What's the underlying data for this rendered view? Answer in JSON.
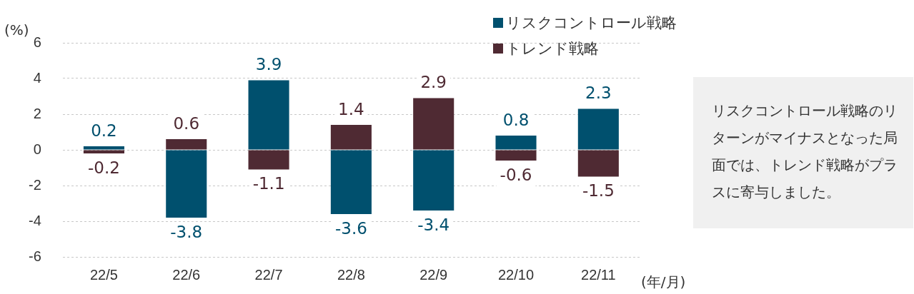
{
  "chart_data": {
    "type": "bar",
    "stacked": true,
    "ylabel": "(%)",
    "xlabel": "(年/月)",
    "categories": [
      "22/5",
      "22/6",
      "22/7",
      "22/8",
      "22/9",
      "22/10",
      "22/11"
    ],
    "series": [
      {
        "name": "リスクコントロール戦略",
        "color": "#00506e",
        "values": [
          0.2,
          -3.8,
          3.9,
          -3.6,
          -3.4,
          0.8,
          2.3
        ]
      },
      {
        "name": "トレンド戦略",
        "color": "#4f2a33",
        "values": [
          -0.2,
          0.6,
          -1.1,
          1.4,
          2.9,
          -0.6,
          -1.5
        ]
      }
    ],
    "ylim": [
      -6,
      6
    ],
    "yticks": [
      -6,
      -4,
      -2,
      0,
      2,
      4,
      6
    ],
    "grid": "y",
    "legend": "top right",
    "data_labels": true,
    "annotations": [
      "リスクコントロール戦略のリターンがマイナスとなった局面では、トレンド戦略がプラスに寄与しました。"
    ]
  }
}
